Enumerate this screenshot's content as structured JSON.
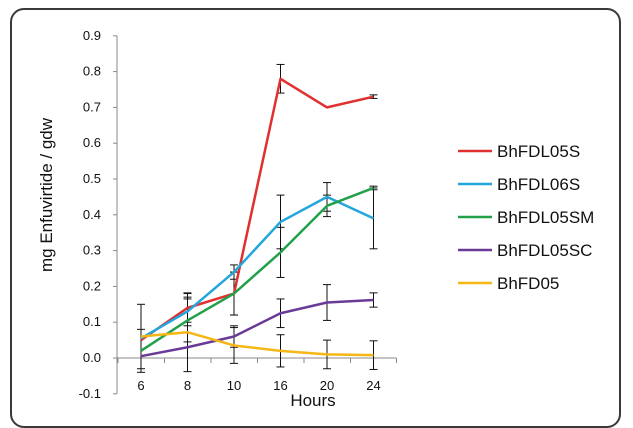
{
  "chart_data": {
    "type": "line",
    "xlabel": "Hours",
    "ylabel": "mg Enfuvirtide / gdw",
    "categories": [
      "6",
      "8",
      "10",
      "16",
      "20",
      "24"
    ],
    "ylim": [
      -0.1,
      0.9
    ],
    "yticks": [
      "-0.1",
      "0.0",
      "0.1",
      "0.2",
      "0.3",
      "0.4",
      "0.5",
      "0.6",
      "0.7",
      "0.8",
      "0.9"
    ],
    "grid": false,
    "legend_position": "right",
    "series": [
      {
        "name": "BhFDL05S",
        "color": "#e03030",
        "values": [
          0.05,
          0.14,
          0.18,
          0.78,
          0.7,
          0.73
        ],
        "errors": [
          0.0,
          0.04,
          0.06,
          0.04,
          0.0,
          0.005
        ]
      },
      {
        "name": "BhFDL06S",
        "color": "#22a6dc",
        "values": [
          0.055,
          0.13,
          0.24,
          0.38,
          0.45,
          0.39
        ],
        "errors": [
          0.0,
          0.04,
          0.02,
          0.075,
          0.04,
          0.085
        ]
      },
      {
        "name": "BhFDL05SM",
        "color": "#22a04a",
        "values": [
          0.02,
          0.105,
          0.18,
          0.295,
          0.425,
          0.475
        ],
        "errors": [
          0.06,
          0.06,
          0.06,
          0.07,
          0.03,
          0.005
        ]
      },
      {
        "name": "BhFDL05SC",
        "color": "#6a3b96",
        "values": [
          0.005,
          0.03,
          0.06,
          0.125,
          0.155,
          0.162
        ],
        "errors": [
          0.0,
          0.0,
          0.03,
          0.04,
          0.05,
          0.02
        ]
      },
      {
        "name": "BhFD05",
        "color": "#f5b616",
        "values": [
          0.06,
          0.072,
          0.035,
          0.02,
          0.01,
          0.008
        ],
        "errors": [
          0.09,
          0.11,
          0.05,
          0.045,
          0.04,
          0.04
        ]
      }
    ]
  }
}
